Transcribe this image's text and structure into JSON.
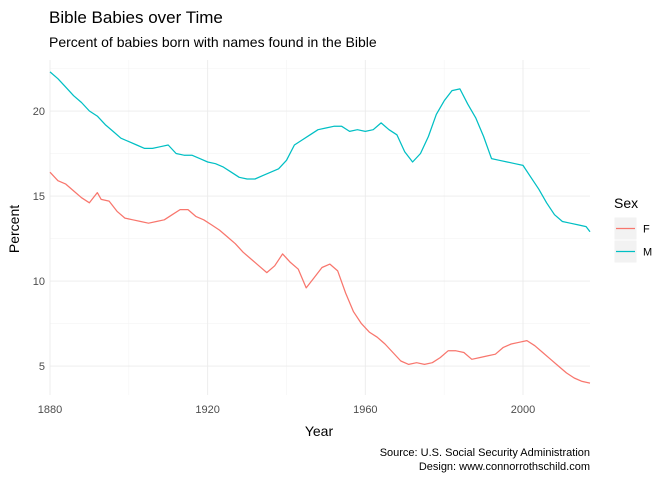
{
  "chart_data": {
    "type": "line",
    "title": "Bible Babies over Time",
    "subtitle": "Percent of babies born with names found in the Bible",
    "xlabel": "Year",
    "ylabel": "Percent",
    "xlim": [
      1880,
      2017
    ],
    "ylim": [
      3.3,
      23.0
    ],
    "x_ticks": [
      1880,
      1920,
      1960,
      2000
    ],
    "y_ticks": [
      5,
      10,
      15,
      20
    ],
    "grid": true,
    "legend": {
      "title": "Sex",
      "position": "right"
    },
    "caption": [
      "Source: U.S. Social Security Administration",
      "Design: www.connorrothschild.com"
    ],
    "series": [
      {
        "name": "F",
        "color": "#F8766D",
        "points": [
          [
            1880,
            16.4
          ],
          [
            1882,
            15.9
          ],
          [
            1884,
            15.7
          ],
          [
            1886,
            15.3
          ],
          [
            1888,
            14.9
          ],
          [
            1890,
            14.6
          ],
          [
            1892,
            15.2
          ],
          [
            1893,
            14.8
          ],
          [
            1895,
            14.7
          ],
          [
            1897,
            14.1
          ],
          [
            1899,
            13.7
          ],
          [
            1901,
            13.6
          ],
          [
            1903,
            13.5
          ],
          [
            1905,
            13.4
          ],
          [
            1907,
            13.5
          ],
          [
            1909,
            13.6
          ],
          [
            1911,
            13.9
          ],
          [
            1913,
            14.2
          ],
          [
            1915,
            14.2
          ],
          [
            1917,
            13.8
          ],
          [
            1919,
            13.6
          ],
          [
            1921,
            13.3
          ],
          [
            1923,
            13.0
          ],
          [
            1925,
            12.6
          ],
          [
            1927,
            12.2
          ],
          [
            1929,
            11.7
          ],
          [
            1931,
            11.3
          ],
          [
            1933,
            10.9
          ],
          [
            1935,
            10.5
          ],
          [
            1937,
            10.9
          ],
          [
            1939,
            11.6
          ],
          [
            1941,
            11.1
          ],
          [
            1943,
            10.7
          ],
          [
            1945,
            9.6
          ],
          [
            1947,
            10.2
          ],
          [
            1949,
            10.8
          ],
          [
            1951,
            11.0
          ],
          [
            1953,
            10.6
          ],
          [
            1955,
            9.3
          ],
          [
            1957,
            8.2
          ],
          [
            1959,
            7.5
          ],
          [
            1961,
            7.0
          ],
          [
            1963,
            6.7
          ],
          [
            1965,
            6.3
          ],
          [
            1967,
            5.8
          ],
          [
            1969,
            5.3
          ],
          [
            1971,
            5.1
          ],
          [
            1973,
            5.2
          ],
          [
            1975,
            5.1
          ],
          [
            1977,
            5.2
          ],
          [
            1979,
            5.5
          ],
          [
            1981,
            5.9
          ],
          [
            1983,
            5.9
          ],
          [
            1985,
            5.8
          ],
          [
            1987,
            5.4
          ],
          [
            1989,
            5.5
          ],
          [
            1991,
            5.6
          ],
          [
            1993,
            5.7
          ],
          [
            1995,
            6.1
          ],
          [
            1997,
            6.3
          ],
          [
            1999,
            6.4
          ],
          [
            2001,
            6.5
          ],
          [
            2003,
            6.2
          ],
          [
            2005,
            5.8
          ],
          [
            2007,
            5.4
          ],
          [
            2009,
            5.0
          ],
          [
            2011,
            4.6
          ],
          [
            2013,
            4.3
          ],
          [
            2015,
            4.1
          ],
          [
            2017,
            4.0
          ]
        ]
      },
      {
        "name": "M",
        "color": "#00BFC4",
        "points": [
          [
            1880,
            22.3
          ],
          [
            1882,
            21.9
          ],
          [
            1884,
            21.4
          ],
          [
            1886,
            20.9
          ],
          [
            1888,
            20.5
          ],
          [
            1890,
            20.0
          ],
          [
            1892,
            19.7
          ],
          [
            1894,
            19.2
          ],
          [
            1896,
            18.8
          ],
          [
            1898,
            18.4
          ],
          [
            1900,
            18.2
          ],
          [
            1902,
            18.0
          ],
          [
            1904,
            17.8
          ],
          [
            1906,
            17.8
          ],
          [
            1908,
            17.9
          ],
          [
            1910,
            18.0
          ],
          [
            1912,
            17.5
          ],
          [
            1914,
            17.4
          ],
          [
            1916,
            17.4
          ],
          [
            1918,
            17.2
          ],
          [
            1920,
            17.0
          ],
          [
            1922,
            16.9
          ],
          [
            1924,
            16.7
          ],
          [
            1926,
            16.4
          ],
          [
            1928,
            16.1
          ],
          [
            1930,
            16.0
          ],
          [
            1932,
            16.0
          ],
          [
            1934,
            16.2
          ],
          [
            1936,
            16.4
          ],
          [
            1938,
            16.6
          ],
          [
            1940,
            17.1
          ],
          [
            1942,
            18.0
          ],
          [
            1944,
            18.3
          ],
          [
            1946,
            18.6
          ],
          [
            1948,
            18.9
          ],
          [
            1950,
            19.0
          ],
          [
            1952,
            19.1
          ],
          [
            1954,
            19.1
          ],
          [
            1956,
            18.8
          ],
          [
            1958,
            18.9
          ],
          [
            1960,
            18.8
          ],
          [
            1962,
            18.9
          ],
          [
            1964,
            19.3
          ],
          [
            1966,
            18.9
          ],
          [
            1968,
            18.6
          ],
          [
            1970,
            17.6
          ],
          [
            1972,
            17.0
          ],
          [
            1974,
            17.5
          ],
          [
            1976,
            18.5
          ],
          [
            1978,
            19.8
          ],
          [
            1980,
            20.6
          ],
          [
            1982,
            21.2
          ],
          [
            1984,
            21.3
          ],
          [
            1986,
            20.4
          ],
          [
            1988,
            19.6
          ],
          [
            1990,
            18.5
          ],
          [
            1992,
            17.2
          ],
          [
            1994,
            17.1
          ],
          [
            1996,
            17.0
          ],
          [
            1998,
            16.9
          ],
          [
            2000,
            16.8
          ],
          [
            2002,
            16.1
          ],
          [
            2004,
            15.4
          ],
          [
            2006,
            14.6
          ],
          [
            2008,
            13.9
          ],
          [
            2010,
            13.5
          ],
          [
            2012,
            13.4
          ],
          [
            2014,
            13.3
          ],
          [
            2016,
            13.2
          ],
          [
            2017,
            12.9
          ]
        ]
      }
    ]
  }
}
